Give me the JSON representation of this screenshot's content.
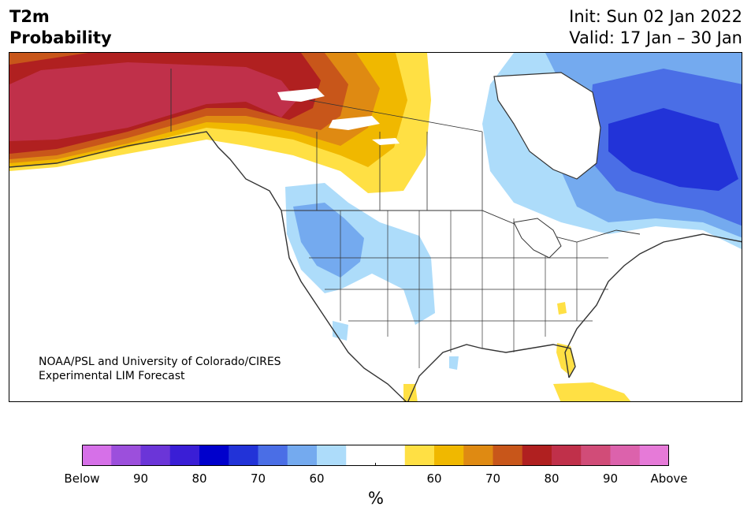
{
  "header": {
    "variable": "T2m",
    "product": "Probability",
    "init": "Init: Sun 02 Jan 2022",
    "valid": "Valid: 17 Jan – 30 Jan"
  },
  "credit": {
    "line1": "NOAA/PSL and University of Colorado/CIRES",
    "line2": "Experimental LIM Forecast"
  },
  "colorbar": {
    "colors": [
      "#d670e8",
      "#9c4fdc",
      "#6b35d8",
      "#3a1ed6",
      "#0000cc",
      "#2233d8",
      "#4a6ee6",
      "#74aaef",
      "#addcfa",
      "#ffffff",
      "#ffffff",
      "#ffe044",
      "#f0b800",
      "#df8a12",
      "#c8561a",
      "#b02020",
      "#c0304a",
      "#d14c78",
      "#dc62ac",
      "#e67ad8"
    ],
    "labels": [
      "Below",
      "90",
      "80",
      "70",
      "60",
      "60",
      "70",
      "80",
      "90",
      "Above"
    ],
    "unit": "%"
  }
}
